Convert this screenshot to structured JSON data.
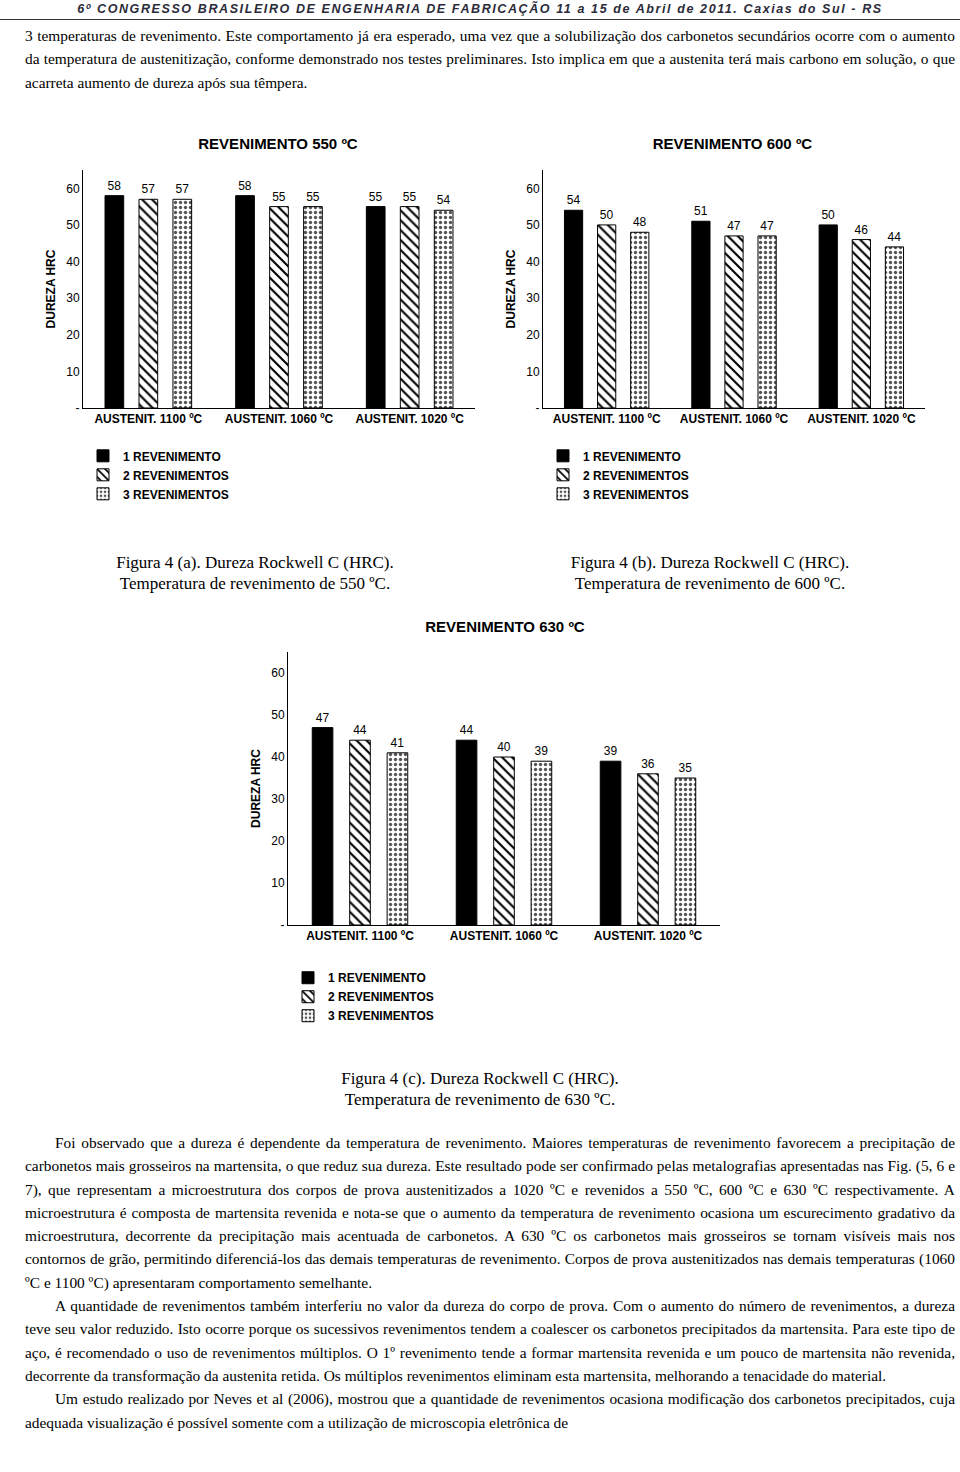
{
  "header": "6º CONGRESSO BRASILEIRO DE ENGENHARIA DE FABRICAÇÃO 11 a 15 de Abril de 2011. Caxias do Sul - RS",
  "paragraphs_top": [
    "3 temperaturas de revenimento. Este comportamento já era esperado, uma vez que a solubilização dos carbonetos secundários ocorre com o aumento da temperatura de austenitização, conforme demonstrado nos testes preliminares. Isto implica em que a austenita terá mais carbono em solução, o que acarreta aumento de dureza após sua têmpera."
  ],
  "chart_data": [
    {
      "type": "bar",
      "title": "REVENIMENTO 550 ºC",
      "y_label": "DUREZA HRC",
      "categories": [
        "AUSTENIT. 1100 ºC",
        "AUSTENIT. 1060 ºC",
        "AUSTENIT. 1020 ºC"
      ],
      "series": [
        {
          "name": "1 REVENIMENTO",
          "color": "#000000",
          "marker": "solid",
          "values": [
            58,
            58,
            55
          ]
        },
        {
          "name": "2 REVENIMENTOS",
          "color": "#000000",
          "marker": "hatch",
          "values": [
            57,
            55,
            55
          ]
        },
        {
          "name": "3 REVENIMENTOS",
          "color": "#555555",
          "marker": "dots",
          "values": [
            57,
            55,
            54
          ]
        }
      ],
      "ylim": [
        0,
        65
      ],
      "yticks": [
        {
          "value": 0,
          "label": "-"
        },
        10,
        20,
        30,
        40,
        50,
        60
      ],
      "grid": false,
      "data_labels": true,
      "legend": "bottom",
      "caption": [
        "Figura 4 (a). Dureza Rockwell C (HRC).",
        "Temperatura de revenimento de 550 ºC."
      ]
    },
    {
      "type": "bar",
      "title": "REVENIMENTO 600 ºC",
      "y_label": "DUREZA HRC",
      "categories": [
        "AUSTENIT. 1100 ºC",
        "AUSTENIT. 1060 ºC",
        "AUSTENIT. 1020 ºC"
      ],
      "series": [
        {
          "name": "1 REVENIMENTO",
          "color": "#000000",
          "marker": "solid",
          "values": [
            54,
            51,
            50
          ]
        },
        {
          "name": "2 REVENIMENTOS",
          "color": "#000000",
          "marker": "hatch",
          "values": [
            50,
            47,
            46
          ]
        },
        {
          "name": "3 REVENIMENTOS",
          "color": "#555555",
          "marker": "dots",
          "values": [
            48,
            47,
            44
          ]
        }
      ],
      "ylim": [
        0,
        65
      ],
      "yticks": [
        {
          "value": 0,
          "label": "-"
        },
        10,
        20,
        30,
        40,
        50,
        60
      ],
      "grid": false,
      "data_labels": true,
      "legend": "bottom",
      "caption": [
        "Figura 4 (b). Dureza Rockwell C (HRC).",
        "Temperatura de revenimento de 600 ºC."
      ]
    },
    {
      "type": "bar",
      "title": "REVENIMENTO 630 ºC",
      "y_label": "DUREZA HRC",
      "categories": [
        "AUSTENIT. 1100 ºC",
        "AUSTENIT. 1060 ºC",
        "AUSTENIT. 1020 ºC"
      ],
      "series": [
        {
          "name": "1 REVENIMENTO",
          "color": "#000000",
          "marker": "solid",
          "values": [
            47,
            44,
            39
          ]
        },
        {
          "name": "2 REVENIMENTOS",
          "color": "#000000",
          "marker": "hatch",
          "values": [
            44,
            40,
            36
          ]
        },
        {
          "name": "3 REVENIMENTOS",
          "color": "#555555",
          "marker": "dots",
          "values": [
            41,
            39,
            35
          ]
        }
      ],
      "ylim": [
        0,
        65
      ],
      "yticks": [
        {
          "value": 0,
          "label": "-"
        },
        10,
        20,
        30,
        40,
        50,
        60
      ],
      "grid": false,
      "data_labels": true,
      "legend": "bottom",
      "caption": [
        "Figura 4 (c). Dureza Rockwell C (HRC).",
        "Temperatura de revenimento de 630 ºC."
      ]
    }
  ],
  "paragraphs_bottom": [
    "Foi observado que a dureza é dependente da temperatura de revenimento. Maiores temperaturas de revenimento favorecem a precipitação de carbonetos mais grosseiros na martensita, o que reduz sua dureza. Este resultado pode ser confirmado pelas metalografias apresentadas nas Fig. (5, 6 e 7), que representam a microestrutura dos corpos de prova austenitizados a 1020 ºC e revenidos a 550 ºC, 600 ºC e 630 ºC respectivamente. A microestrutura é composta de martensita revenida e nota-se que o aumento da temperatura de revenimento ocasiona um escurecimento gradativo da microestrutura, decorrente da precipitação mais acentuada de carbonetos. A 630 ºC os carbonetos mais grosseiros se tornam visíveis mais nos contornos de grão, permitindo diferenciá-los das demais temperaturas de revenimento. Corpos de prova austenitizados nas demais temperaturas (1060 ºC e 1100 ºC) apresentaram comportamento semelhante.",
    "A quantidade de revenimentos também interferiu no valor da dureza do corpo de prova. Com o aumento do número de revenimentos, a dureza teve seu valor reduzido. Isto ocorre porque os sucessivos revenimentos tendem a coalescer os carbonetos precipitados da martensita. Para este tipo de aço, é recomendado o uso de revenimentos múltiplos. O 1º revenimento tende a formar martensita revenida e um pouco de martensita não revenida, decorrente da transformação da austenita retida. Os múltiplos revenimentos eliminam esta martensita, melhorando a tenacidade do material.",
    "Um estudo realizado por Neves et al (2006), mostrou que a quantidade de revenimentos ocasiona modificação dos carbonetos precipitados, cuja adequada visualização é possível somente com a utilização de microscopia eletrônica de"
  ]
}
